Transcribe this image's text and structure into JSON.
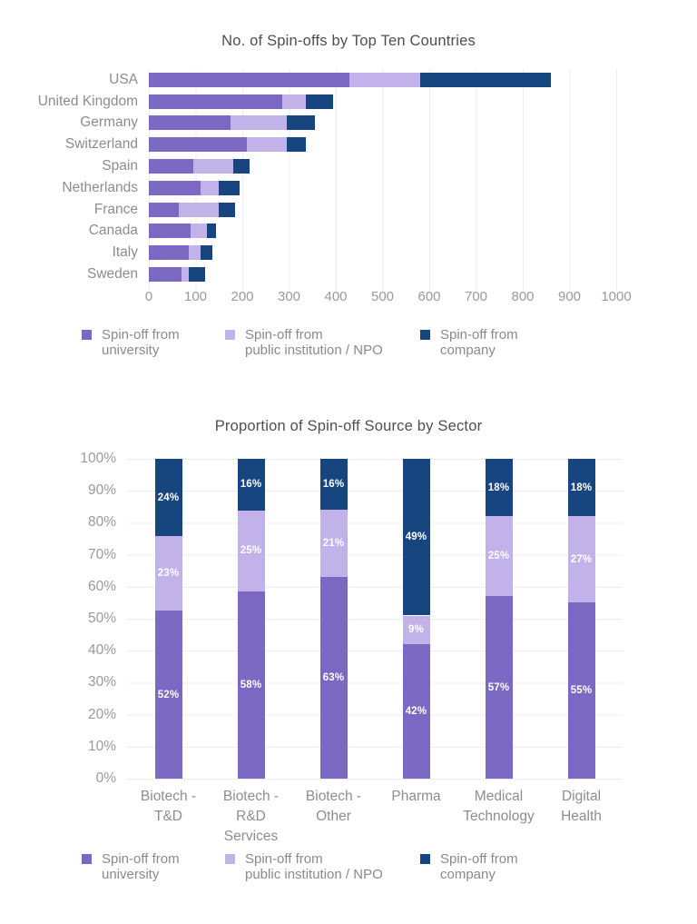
{
  "page": {
    "background": "#ffffff"
  },
  "colors": {
    "university": "#7a68c2",
    "npo": "#c2b2ea",
    "company": "#17457f",
    "gridline": "#ececf2",
    "title_text": "#4f4f4f",
    "axis_text": "#9a9a9e",
    "label_text": "#8d8d91"
  },
  "chart_data": [
    {
      "type": "bar",
      "orientation": "horizontal",
      "stacked": true,
      "title": "No. of Spin-offs by Top Ten Countries",
      "categories": [
        "USA",
        "United Kingdom",
        "Germany",
        "Switzerland",
        "Spain",
        "Netherlands",
        "France",
        "Canada",
        "Italy",
        "Sweden"
      ],
      "series": [
        {
          "key": "university",
          "name": "Spin-off from university",
          "label": "Spin-off from\nuniversity",
          "color": "#7a68c2",
          "values": [
            430,
            285,
            175,
            210,
            95,
            110,
            65,
            90,
            85,
            70
          ]
        },
        {
          "key": "npo",
          "name": "Spin-off from public institution / NPO",
          "label": "Spin-off from\npublic institution / NPO",
          "color": "#c2b2ea",
          "values": [
            150,
            50,
            120,
            85,
            85,
            40,
            85,
            35,
            25,
            15
          ]
        },
        {
          "key": "company",
          "name": "Spin-off from company",
          "label": "Spin-off from\ncompany",
          "color": "#17457f",
          "values": [
            280,
            60,
            60,
            40,
            35,
            45,
            35,
            18,
            25,
            35
          ]
        }
      ],
      "xlim": [
        0,
        1000
      ],
      "x_ticks": [
        0,
        100,
        200,
        300,
        400,
        500,
        600,
        700,
        800,
        900,
        1000
      ],
      "grid": "vertical",
      "legend_position": "bottom"
    },
    {
      "type": "bar",
      "orientation": "vertical",
      "stacked": true,
      "unit": "percent",
      "title": "Proportion of Spin-off Source by Sector",
      "categories": [
        "Biotech -\nT&D",
        "Biotech -\nR&D\nServices",
        "Biotech -\nOther",
        "Pharma",
        "Medical\nTechnology",
        "Digital\nHealth"
      ],
      "series": [
        {
          "key": "university",
          "name": "Spin-off from university",
          "label": "Spin-off from\nuniversity",
          "color": "#7a68c2",
          "values": [
            52,
            58,
            63,
            42,
            57,
            55
          ]
        },
        {
          "key": "npo",
          "name": "Spin-off from public institution / NPO",
          "label": "Spin-off from\npublic institution / NPO",
          "color": "#c2b2ea",
          "values": [
            23,
            25,
            21,
            9,
            25,
            27
          ]
        },
        {
          "key": "company",
          "name": "Spin-off from company",
          "label": "Spin-off from\ncompany",
          "color": "#17457f",
          "values": [
            24,
            16,
            16,
            49,
            18,
            18
          ]
        }
      ],
      "ylim": [
        0,
        100
      ],
      "y_ticks": [
        "0%",
        "10%",
        "20%",
        "30%",
        "40%",
        "50%",
        "60%",
        "70%",
        "80%",
        "90%",
        "100%"
      ],
      "grid": "horizontal",
      "data_labels": "percent-inside",
      "legend_position": "bottom"
    }
  ]
}
